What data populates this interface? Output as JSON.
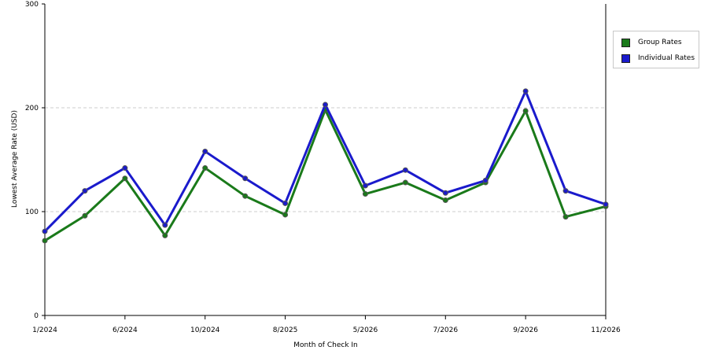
{
  "chart_data": {
    "type": "line",
    "title": "",
    "xlabel": "Month of Check In",
    "ylabel": "Lowest Average Rate (USD)",
    "ylim": [
      0,
      300
    ],
    "yticks": [
      0,
      100,
      200,
      300
    ],
    "x_tick_labels": [
      "1/2024",
      "6/2024",
      "10/2024",
      "8/2025",
      "5/2026",
      "7/2026",
      "9/2026",
      "11/2026"
    ],
    "x_tick_positions": [
      0,
      2,
      4,
      6,
      8,
      10,
      12,
      14
    ],
    "point_count": 15,
    "grid": "horizontal dashed at 100 and 200",
    "legend_position": "right",
    "series": [
      {
        "name": "Group Rates",
        "color": "#1a7a1a",
        "values": [
          72,
          96,
          132,
          77,
          142,
          115,
          97,
          198,
          117,
          128,
          111,
          128,
          197,
          95,
          105
        ]
      },
      {
        "name": "Individual Rates",
        "color": "#1a1acc",
        "values": [
          81,
          120,
          142,
          87,
          158,
          132,
          108,
          203,
          125,
          140,
          118,
          130,
          216,
          120,
          107
        ]
      }
    ]
  }
}
